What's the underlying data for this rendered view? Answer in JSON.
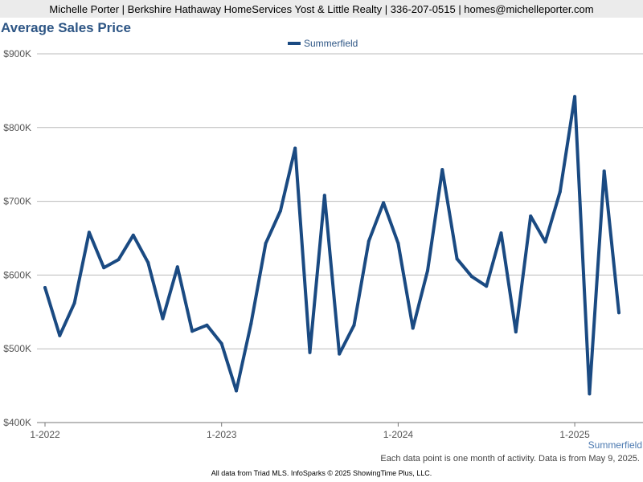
{
  "header": {
    "contact_text": "Michelle Porter | Berkshire Hathaway HomeServices Yost & Little Realty | 336-207-0515 | homes@michelleporter.com"
  },
  "colors": {
    "line": "#1a4a82",
    "title": "#2e5685",
    "grid": "#bbbbbb"
  },
  "chart_data": {
    "type": "line",
    "title": "Average Sales Price",
    "xlabel": "",
    "ylabel": "",
    "ylim": [
      400000,
      900000
    ],
    "yticks": [
      400000,
      500000,
      600000,
      700000,
      800000,
      900000
    ],
    "ytick_labels": [
      "$400K",
      "$500K",
      "$600K",
      "$700K",
      "$800K",
      "$900K"
    ],
    "x": [
      "2022-01",
      "2022-02",
      "2022-03",
      "2022-04",
      "2022-05",
      "2022-06",
      "2022-07",
      "2022-08",
      "2022-09",
      "2022-10",
      "2022-11",
      "2022-12",
      "2023-01",
      "2023-02",
      "2023-03",
      "2023-04",
      "2023-05",
      "2023-06",
      "2023-07",
      "2023-08",
      "2023-09",
      "2023-10",
      "2023-11",
      "2023-12",
      "2024-01",
      "2024-02",
      "2024-03",
      "2024-04",
      "2024-05",
      "2024-06",
      "2024-07",
      "2024-08",
      "2024-09",
      "2024-10",
      "2024-11",
      "2024-12",
      "2025-01",
      "2025-02",
      "2025-03",
      "2025-04"
    ],
    "xtick_positions": [
      "2022-01",
      "2023-01",
      "2024-01",
      "2025-01"
    ],
    "xtick_labels": [
      "1-2022",
      "1-2023",
      "1-2024",
      "1-2025"
    ],
    "series": [
      {
        "name": "Summerfield",
        "values": [
          583000,
          518000,
          562000,
          658000,
          610000,
          621000,
          654000,
          617000,
          541000,
          611000,
          524000,
          532000,
          507000,
          443000,
          534000,
          643000,
          687000,
          772000,
          495000,
          708000,
          493000,
          532000,
          646000,
          698000,
          643000,
          528000,
          606000,
          743000,
          622000,
          598000,
          585000,
          657000,
          523000,
          680000,
          645000,
          713000,
          842000,
          439000,
          741000,
          549000
        ]
      }
    ],
    "grid": true,
    "legend_position": "top-center",
    "corner_label": "Summerfield"
  },
  "footer": {
    "note": "Each data point is one month of activity. Data is from May 9, 2025.",
    "source": "All data from Triad MLS. InfoSparks © 2025 ShowingTime Plus, LLC."
  }
}
